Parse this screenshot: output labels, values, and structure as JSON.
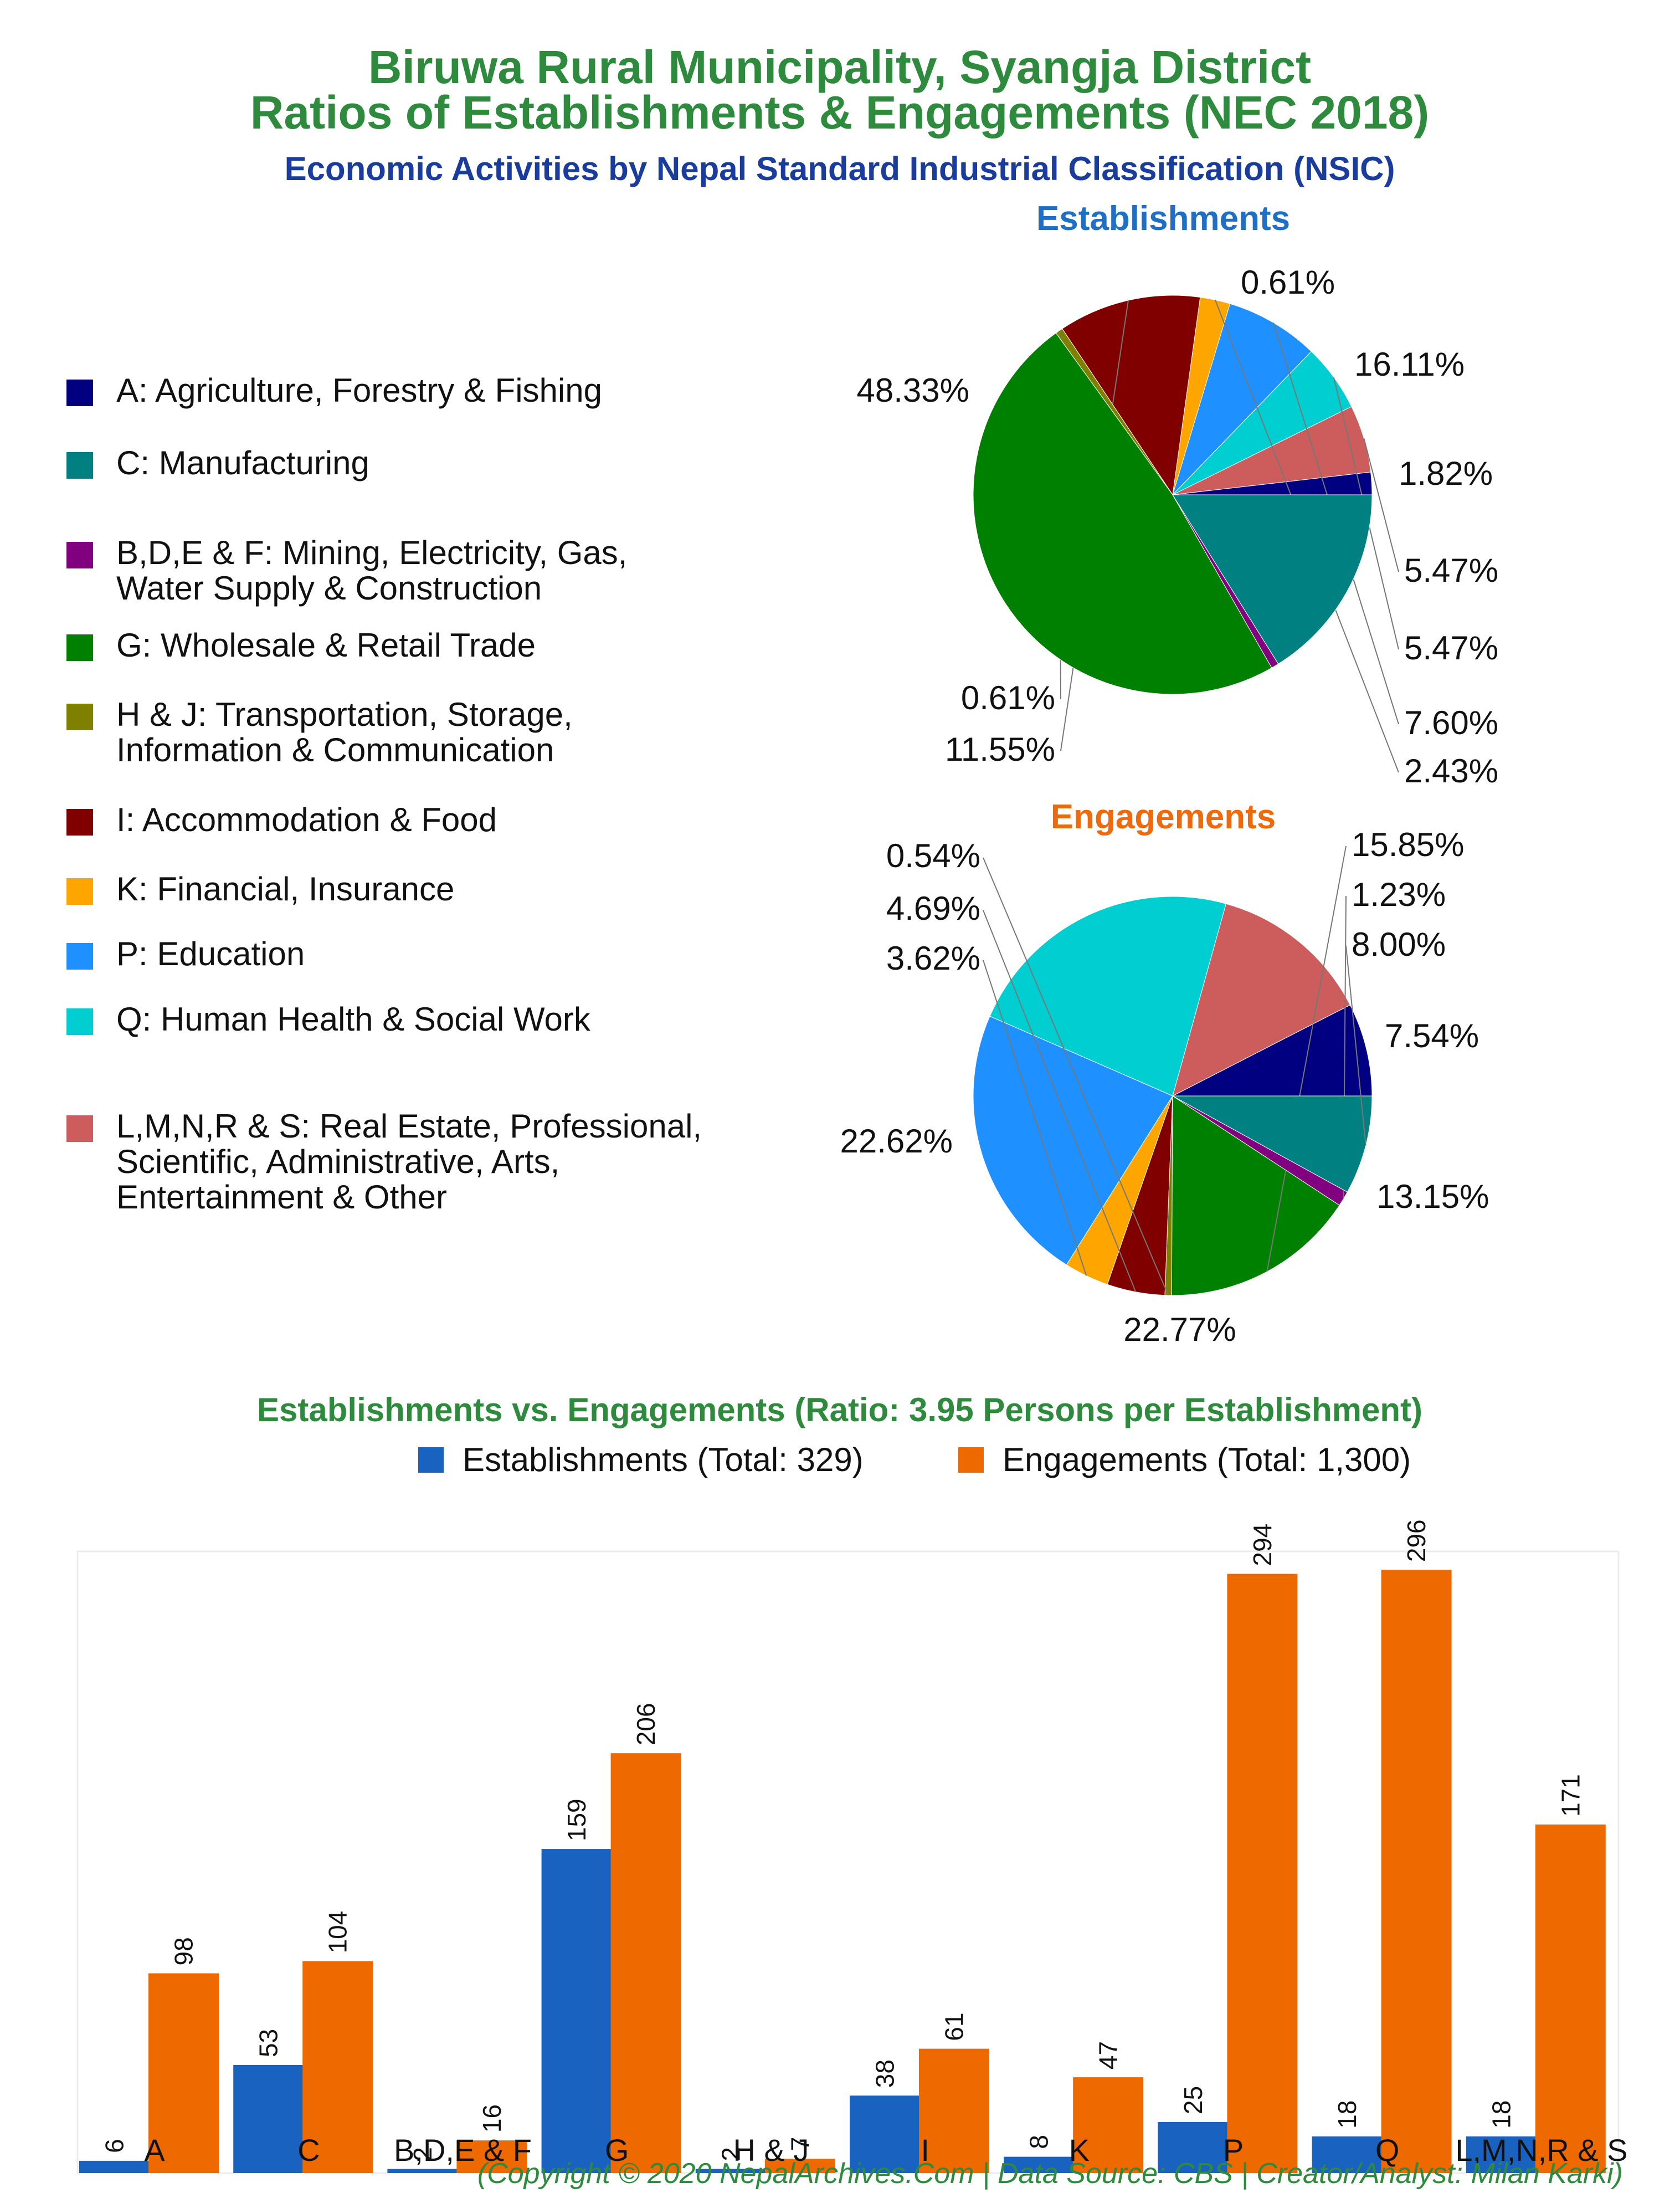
{
  "header": {
    "title_line1": "Biruwa Rural Municipality, Syangja District",
    "title_line2": "Ratios of Establishments & Engagements (NEC 2018)",
    "subtitle": "Economic Activities by Nepal Standard Industrial Classification (NSIC)"
  },
  "colors": {
    "title": "#2e8b3e",
    "subtitle": "#1a3c9c",
    "establishments_heading": "#1f6fc5",
    "engagements_heading": "#ee6a0e",
    "bar_establishments": "#1a62c0",
    "bar_engagements": "#ee6a00",
    "text": "#111111",
    "footer": "#2e8b3e"
  },
  "legend": {
    "items": [
      {
        "lines": [
          "A: Agriculture, Forestry & Fishing"
        ],
        "color": "#000080"
      },
      {
        "lines": [
          "C: Manufacturing"
        ],
        "color": "#008080"
      },
      {
        "lines": [
          "B,D,E & F: Mining, Electricity, Gas,",
          "Water Supply & Construction"
        ],
        "color": "#800080"
      },
      {
        "lines": [
          "G: Wholesale & Retail Trade"
        ],
        "color": "#008000"
      },
      {
        "lines": [
          "H & J: Transportation, Storage,",
          "Information & Communication"
        ],
        "color": "#808000"
      },
      {
        "lines": [
          "I: Accommodation & Food"
        ],
        "color": "#800000"
      },
      {
        "lines": [
          "K: Financial, Insurance"
        ],
        "color": "#ffa500"
      },
      {
        "lines": [
          "P: Education"
        ],
        "color": "#1e90ff"
      },
      {
        "lines": [
          "Q: Human Health & Social Work"
        ],
        "color": "#00ced1"
      },
      {
        "lines": [
          "L,M,N,R & S: Real Estate, Professional,",
          "Scientific, Administrative, Arts,",
          "Entertainment & Other"
        ],
        "color": "#cd5c5c"
      }
    ]
  },
  "chart_data": [
    {
      "type": "pie",
      "title": "Establishments",
      "slices": [
        {
          "category": "A",
          "value": 1.82,
          "label": "1.82%",
          "color": "#000080"
        },
        {
          "category": "L,M,N,R & S",
          "value": 5.47,
          "label": "5.47%",
          "color": "#cd5c5c"
        },
        {
          "category": "Q",
          "value": 5.47,
          "label": "5.47%",
          "color": "#00ced1"
        },
        {
          "category": "P",
          "value": 7.6,
          "label": "7.60%",
          "color": "#1e90ff"
        },
        {
          "category": "K",
          "value": 2.43,
          "label": "2.43%",
          "color": "#ffa500"
        },
        {
          "category": "I",
          "value": 11.55,
          "label": "11.55%",
          "color": "#800000"
        },
        {
          "category": "H & J",
          "value": 0.61,
          "label": "0.61%",
          "color": "#808000"
        },
        {
          "category": "G",
          "value": 48.33,
          "label": "48.33%",
          "color": "#008000"
        },
        {
          "category": "B,D,E & F",
          "value": 0.61,
          "label": "0.61%",
          "color": "#800080"
        },
        {
          "category": "C",
          "value": 16.11,
          "label": "16.11%",
          "color": "#008080"
        }
      ]
    },
    {
      "type": "pie",
      "title": "Engagements",
      "slices": [
        {
          "category": "A",
          "value": 7.54,
          "label": "7.54%",
          "color": "#000080"
        },
        {
          "category": "L,M,N,R & S",
          "value": 13.15,
          "label": "13.15%",
          "color": "#cd5c5c"
        },
        {
          "category": "Q",
          "value": 22.77,
          "label": "22.77%",
          "color": "#00ced1"
        },
        {
          "category": "P",
          "value": 22.62,
          "label": "22.62%",
          "color": "#1e90ff"
        },
        {
          "category": "K",
          "value": 3.62,
          "label": "3.62%",
          "color": "#ffa500"
        },
        {
          "category": "I",
          "value": 4.69,
          "label": "4.69%",
          "color": "#800000"
        },
        {
          "category": "H & J",
          "value": 0.54,
          "label": "0.54%",
          "color": "#808000"
        },
        {
          "category": "G",
          "value": 15.85,
          "label": "15.85%",
          "color": "#008000"
        },
        {
          "category": "B,D,E & F",
          "value": 1.23,
          "label": "1.23%",
          "color": "#800080"
        },
        {
          "category": "C",
          "value": 8.0,
          "label": "8.00%",
          "color": "#008080"
        }
      ]
    },
    {
      "type": "bar",
      "title": "Establishments vs. Engagements (Ratio: 3.95 Persons per Establishment)",
      "categories": [
        "A",
        "C",
        "B,D,E & F",
        "G",
        "H & J",
        "I",
        "K",
        "P",
        "Q",
        "L,M,N,R & S"
      ],
      "series": [
        {
          "name": "Establishments (Total: 329)",
          "values": [
            6,
            53,
            2,
            159,
            2,
            38,
            8,
            25,
            18,
            18
          ],
          "color": "#1a62c0"
        },
        {
          "name": "Engagements (Total: 1,300)",
          "values": [
            98,
            104,
            16,
            206,
            7,
            61,
            47,
            294,
            296,
            171
          ],
          "color": "#ee6a00"
        }
      ],
      "ylim": [
        0,
        305
      ],
      "legend_position": "top"
    }
  ],
  "footer": {
    "credit": "(Copyright © 2020 NepalArchives.Com | Data Source: CBS | Creator/Analyst: Milan Karki)"
  }
}
